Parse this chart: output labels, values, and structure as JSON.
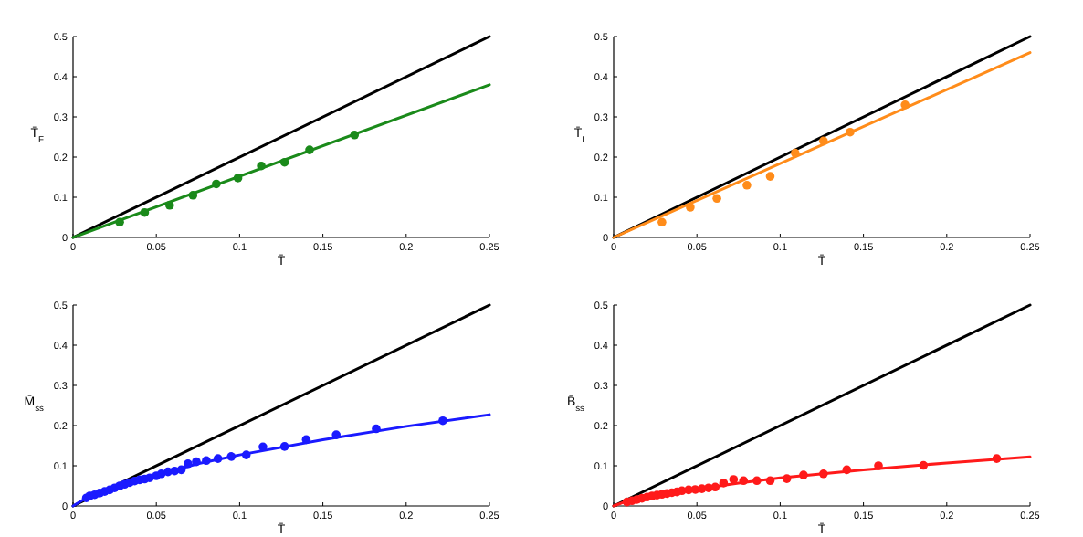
{
  "chart_data": [
    {
      "type": "scatter",
      "xlabel": "T̄",
      "ylabel": "T̄$_{F}$",
      "xlim": [
        0,
        0.25
      ],
      "ylim": [
        0,
        0.5
      ],
      "xticks": [
        0,
        0.05,
        0.1,
        0.15,
        0.2,
        0.25
      ],
      "yticks": [
        0,
        0.1,
        0.2,
        0.3,
        0.4,
        0.5
      ],
      "grid": false,
      "series": [
        {
          "type": "line",
          "marker": "none",
          "color": "#000000",
          "x": [
            0,
            0.25
          ],
          "values": [
            0,
            0.5
          ]
        },
        {
          "type": "line",
          "marker": "none",
          "color": "#1a8a1a",
          "x": [
            0,
            0.25
          ],
          "values": [
            0,
            0.38
          ]
        },
        {
          "marker": "circle",
          "color": "#1a8a1a",
          "x": [
            0.028,
            0.043,
            0.058,
            0.072,
            0.086,
            0.099,
            0.113,
            0.127,
            0.142,
            0.169
          ],
          "values": [
            0.038,
            0.062,
            0.08,
            0.105,
            0.133,
            0.148,
            0.178,
            0.187,
            0.218,
            0.255
          ]
        }
      ]
    },
    {
      "type": "scatter",
      "xlabel": "T̄",
      "ylabel": "T̄$_{I}$",
      "xlim": [
        0,
        0.25
      ],
      "ylim": [
        0,
        0.5
      ],
      "xticks": [
        0,
        0.05,
        0.1,
        0.15,
        0.2,
        0.25
      ],
      "yticks": [
        0,
        0.1,
        0.2,
        0.3,
        0.4,
        0.5
      ],
      "grid": false,
      "series": [
        {
          "type": "line",
          "marker": "none",
          "color": "#000000",
          "x": [
            0,
            0.25
          ],
          "values": [
            0,
            0.5
          ]
        },
        {
          "type": "line",
          "marker": "none",
          "color": "#ff8c1a",
          "x": [
            0,
            0.25
          ],
          "values": [
            0,
            0.46
          ]
        },
        {
          "marker": "circle",
          "color": "#ff8c1a",
          "x": [
            0.029,
            0.046,
            0.062,
            0.08,
            0.094,
            0.109,
            0.126,
            0.142,
            0.175
          ],
          "values": [
            0.038,
            0.075,
            0.097,
            0.13,
            0.152,
            0.21,
            0.24,
            0.262,
            0.33
          ]
        }
      ]
    },
    {
      "type": "scatter",
      "xlabel": "T̄",
      "ylabel": "M̄$_{ss}$",
      "xlim": [
        0,
        0.25
      ],
      "ylim": [
        0,
        0.5
      ],
      "xticks": [
        0,
        0.05,
        0.1,
        0.15,
        0.2,
        0.25
      ],
      "yticks": [
        0,
        0.1,
        0.2,
        0.3,
        0.4,
        0.5
      ],
      "grid": false,
      "series": [
        {
          "type": "line",
          "marker": "none",
          "color": "#000000",
          "x": [
            0,
            0.25
          ],
          "values": [
            0,
            0.5
          ]
        },
        {
          "type": "line",
          "marker": "none",
          "color": "#1a1aff",
          "x": [
            0,
            0.01,
            0.03,
            0.05,
            0.075,
            0.1,
            0.15,
            0.2,
            0.25
          ],
          "values": [
            0,
            0.025,
            0.055,
            0.077,
            0.105,
            0.127,
            0.165,
            0.198,
            0.227
          ]
        },
        {
          "marker": "circle",
          "color": "#1a1aff",
          "x": [
            0.008,
            0.01,
            0.013,
            0.016,
            0.019,
            0.022,
            0.025,
            0.028,
            0.031,
            0.034,
            0.037,
            0.04,
            0.043,
            0.046,
            0.05,
            0.053,
            0.057,
            0.061,
            0.065,
            0.069,
            0.074,
            0.08,
            0.087,
            0.095,
            0.104,
            0.114,
            0.127,
            0.14,
            0.158,
            0.182,
            0.222
          ],
          "values": [
            0.02,
            0.025,
            0.028,
            0.032,
            0.036,
            0.04,
            0.045,
            0.05,
            0.054,
            0.058,
            0.062,
            0.065,
            0.067,
            0.07,
            0.075,
            0.08,
            0.085,
            0.087,
            0.09,
            0.105,
            0.11,
            0.113,
            0.118,
            0.123,
            0.127,
            0.147,
            0.148,
            0.165,
            0.177,
            0.192,
            0.212
          ]
        }
      ]
    },
    {
      "type": "scatter",
      "xlabel": "T̄",
      "ylabel": "B̄$_{ss}$",
      "xlim": [
        0,
        0.25
      ],
      "ylim": [
        0,
        0.5
      ],
      "xticks": [
        0,
        0.05,
        0.1,
        0.15,
        0.2,
        0.25
      ],
      "yticks": [
        0,
        0.1,
        0.2,
        0.3,
        0.4,
        0.5
      ],
      "grid": false,
      "series": [
        {
          "type": "line",
          "marker": "none",
          "color": "#000000",
          "x": [
            0,
            0.25
          ],
          "values": [
            0,
            0.5
          ]
        },
        {
          "type": "line",
          "marker": "none",
          "color": "#ff1a1a",
          "x": [
            0,
            0.01,
            0.03,
            0.05,
            0.075,
            0.1,
            0.15,
            0.2,
            0.25
          ],
          "values": [
            0,
            0.015,
            0.03,
            0.042,
            0.057,
            0.07,
            0.09,
            0.107,
            0.122
          ]
        },
        {
          "marker": "circle",
          "color": "#ff1a1a",
          "x": [
            0.008,
            0.011,
            0.014,
            0.017,
            0.02,
            0.023,
            0.026,
            0.029,
            0.032,
            0.035,
            0.038,
            0.041,
            0.045,
            0.049,
            0.053,
            0.057,
            0.061,
            0.066,
            0.072,
            0.078,
            0.086,
            0.094,
            0.104,
            0.114,
            0.126,
            0.14,
            0.159,
            0.186,
            0.23
          ],
          "values": [
            0.01,
            0.013,
            0.016,
            0.019,
            0.022,
            0.025,
            0.027,
            0.029,
            0.031,
            0.033,
            0.035,
            0.038,
            0.04,
            0.041,
            0.043,
            0.045,
            0.047,
            0.057,
            0.066,
            0.063,
            0.063,
            0.063,
            0.068,
            0.077,
            0.08,
            0.09,
            0.1,
            0.101,
            0.118
          ]
        }
      ]
    }
  ]
}
